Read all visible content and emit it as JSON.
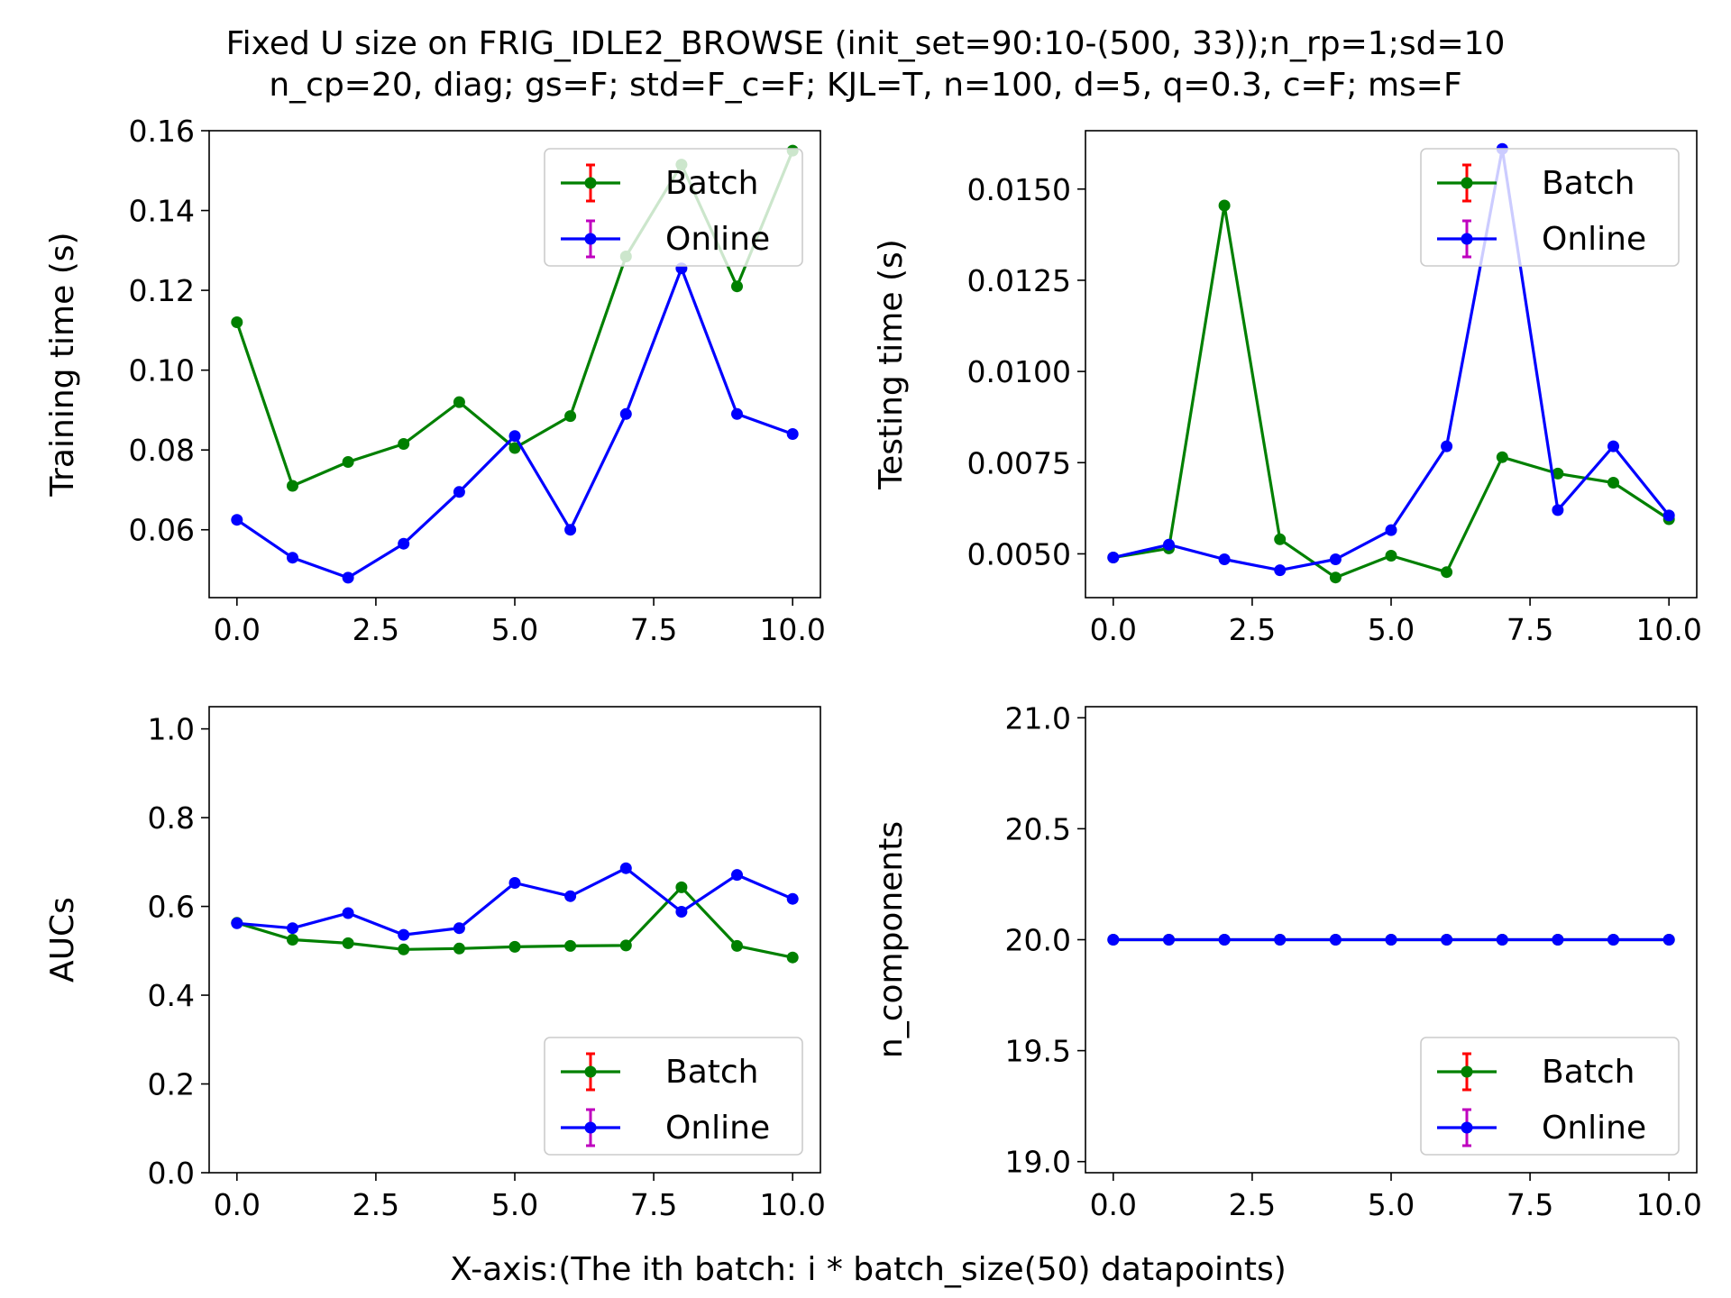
{
  "figure": {
    "title_line1": "Fixed U size on FRIG_IDLE2_BROWSE (init_set=90:10-(500, 33));n_rp=1;sd=10",
    "title_line2": "n_cp=20, diag; gs=F; std=F_c=F; KJL=T, n=100, d=5, q=0.3, c=F; ms=F",
    "xlabel": "X-axis:(The ith batch: i * batch_size(50) datapoints)"
  },
  "colors": {
    "batch": "#008000",
    "online": "#0000ff",
    "batch_err": "#ff0000",
    "online_err": "#bf00bf"
  },
  "chart_data": [
    {
      "type": "line",
      "ylabel": "Training time (s)",
      "x": [
        0,
        1,
        2,
        3,
        4,
        5,
        6,
        7,
        8,
        9,
        10
      ],
      "xlim": [
        -0.5,
        10.5
      ],
      "ylim": [
        0.043,
        0.16
      ],
      "xticks": [
        0,
        2.5,
        5,
        7.5,
        10
      ],
      "xticklabels": [
        "0.0",
        "2.5",
        "5.0",
        "7.5",
        "10.0"
      ],
      "yticks": [
        0.06,
        0.08,
        0.1,
        0.12,
        0.14,
        0.16
      ],
      "yticklabels": [
        "0.06",
        "0.08",
        "0.10",
        "0.12",
        "0.14",
        "0.16"
      ],
      "legend": "upper right",
      "series": [
        {
          "name": "Batch",
          "values": [
            0.112,
            0.071,
            0.077,
            0.0815,
            0.092,
            0.0805,
            0.0885,
            0.1285,
            0.1515,
            0.121,
            0.155
          ]
        },
        {
          "name": "Online",
          "values": [
            0.0625,
            0.053,
            0.048,
            0.0565,
            0.0695,
            0.0835,
            0.06,
            0.089,
            0.1255,
            0.089,
            0.084
          ]
        }
      ]
    },
    {
      "type": "line",
      "ylabel": "Testing time (s)",
      "x": [
        0,
        1,
        2,
        3,
        4,
        5,
        6,
        7,
        8,
        9,
        10
      ],
      "xlim": [
        -0.5,
        10.5
      ],
      "ylim": [
        0.0038,
        0.0166
      ],
      "xticks": [
        0,
        2.5,
        5,
        7.5,
        10
      ],
      "xticklabels": [
        "0.0",
        "2.5",
        "5.0",
        "7.5",
        "10.0"
      ],
      "yticks": [
        0.005,
        0.0075,
        0.01,
        0.0125,
        0.015
      ],
      "yticklabels": [
        "0.0050",
        "0.0075",
        "0.0100",
        "0.0125",
        "0.0150"
      ],
      "legend": "upper right",
      "series": [
        {
          "name": "Batch",
          "values": [
            0.0049,
            0.00515,
            0.01455,
            0.0054,
            0.00435,
            0.00495,
            0.0045,
            0.00765,
            0.0072,
            0.00695,
            0.00595
          ]
        },
        {
          "name": "Online",
          "values": [
            0.0049,
            0.00525,
            0.00485,
            0.00455,
            0.00485,
            0.00565,
            0.00795,
            0.0161,
            0.0062,
            0.00795,
            0.00605
          ]
        }
      ]
    },
    {
      "type": "line",
      "ylabel": "AUCs",
      "x": [
        0,
        1,
        2,
        3,
        4,
        5,
        6,
        7,
        8,
        9,
        10
      ],
      "xlim": [
        -0.5,
        10.5
      ],
      "ylim": [
        0.0,
        1.05
      ],
      "xticks": [
        0,
        2.5,
        5,
        7.5,
        10
      ],
      "xticklabels": [
        "0.0",
        "2.5",
        "5.0",
        "7.5",
        "10.0"
      ],
      "yticks": [
        0.0,
        0.2,
        0.4,
        0.6,
        0.8,
        1.0
      ],
      "yticklabels": [
        "0.0",
        "0.2",
        "0.4",
        "0.6",
        "0.8",
        "1.0"
      ],
      "legend": "lower right",
      "series": [
        {
          "name": "Batch",
          "values": [
            0.563,
            0.525,
            0.517,
            0.503,
            0.505,
            0.509,
            0.511,
            0.512,
            0.643,
            0.511,
            0.485
          ]
        },
        {
          "name": "Online",
          "values": [
            0.562,
            0.551,
            0.585,
            0.536,
            0.551,
            0.653,
            0.623,
            0.686,
            0.588,
            0.671,
            0.617
          ]
        }
      ]
    },
    {
      "type": "line",
      "ylabel": "n_components",
      "x": [
        0,
        1,
        2,
        3,
        4,
        5,
        6,
        7,
        8,
        9,
        10
      ],
      "xlim": [
        -0.5,
        10.5
      ],
      "ylim": [
        18.95,
        21.05
      ],
      "xticks": [
        0,
        2.5,
        5,
        7.5,
        10
      ],
      "xticklabels": [
        "0.0",
        "2.5",
        "5.0",
        "7.5",
        "10.0"
      ],
      "yticks": [
        19.0,
        19.5,
        20.0,
        20.5,
        21.0
      ],
      "yticklabels": [
        "19.0",
        "19.5",
        "20.0",
        "20.5",
        "21.0"
      ],
      "legend": "lower right",
      "series": [
        {
          "name": "Batch",
          "values": [
            20,
            20,
            20,
            20,
            20,
            20,
            20,
            20,
            20,
            20,
            20
          ]
        },
        {
          "name": "Online",
          "values": [
            20,
            20,
            20,
            20,
            20,
            20,
            20,
            20,
            20,
            20,
            20
          ]
        }
      ]
    }
  ]
}
